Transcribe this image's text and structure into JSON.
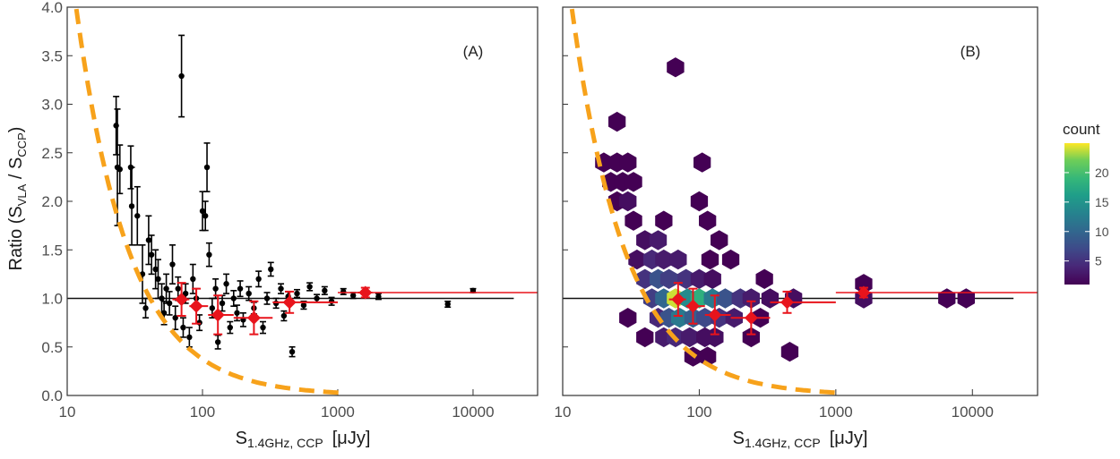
{
  "chart_data": [
    {
      "type": "scatter",
      "panel_label": "(A)",
      "x_scale": "log",
      "xlim": [
        10,
        30000
      ],
      "ylim": [
        0.0,
        4.0
      ],
      "x_ticks": [
        "10",
        "100",
        "1000",
        "10000"
      ],
      "y_ticks": [
        "0.0",
        "0.5",
        "1.0",
        "1.5",
        "2.0",
        "2.5",
        "3.0",
        "3.5",
        "4.0"
      ],
      "xlabel": {
        "main": "S",
        "sub": "1.4GHz, CCP",
        "unit": "[μJy]"
      },
      "ylabel": {
        "prefix": "Ratio (S",
        "sub1": "VLA",
        "mid": " / S",
        "sub2": "CCP",
        "suffix": ")"
      },
      "reference_line_y": 1.0,
      "fit_line": {
        "y": 1.06,
        "x_start": 1000,
        "x_end": 30000
      },
      "dashed_curve": {
        "color": "#f7a21b",
        "form": "y = (x/41)^-1.1"
      },
      "binned_points": [
        {
          "x": 70,
          "y": 0.99,
          "yerr": 0.17,
          "xlo": 60,
          "xhi": 80
        },
        {
          "x": 90,
          "y": 0.92,
          "yerr": 0.18,
          "xlo": 80,
          "xhi": 110
        },
        {
          "x": 130,
          "y": 0.83,
          "yerr": 0.2,
          "xlo": 110,
          "xhi": 170
        },
        {
          "x": 240,
          "y": 0.8,
          "yerr": 0.17,
          "xlo": 170,
          "xhi": 330
        },
        {
          "x": 440,
          "y": 0.96,
          "yerr": 0.11,
          "xlo": 330,
          "xhi": 1000
        },
        {
          "x": 1600,
          "y": 1.06,
          "yerr": 0.05,
          "xlo": 1400,
          "xhi": 1800
        }
      ],
      "points": [
        [
          23,
          2.78,
          0.3
        ],
        [
          23.5,
          2.35,
          0.6
        ],
        [
          24.5,
          2.33,
          0.25
        ],
        [
          29.5,
          2.35,
          0.22
        ],
        [
          30,
          1.95,
          0.4
        ],
        [
          33,
          1.85,
          0.3
        ],
        [
          36,
          1.25,
          0.3
        ],
        [
          38,
          0.9,
          0.1
        ],
        [
          40,
          1.6,
          0.25
        ],
        [
          42,
          1.45,
          0.2
        ],
        [
          45,
          1.3,
          0.2
        ],
        [
          47,
          1.2,
          0.2
        ],
        [
          50,
          1.0,
          0.15
        ],
        [
          52,
          0.85,
          0.12
        ],
        [
          54,
          1.1,
          0.15
        ],
        [
          57,
          0.95,
          0.12
        ],
        [
          60,
          1.35,
          0.2
        ],
        [
          63,
          0.8,
          0.12
        ],
        [
          66,
          1.1,
          0.12
        ],
        [
          70,
          3.29,
          0.42
        ],
        [
          72,
          0.7,
          0.1
        ],
        [
          75,
          1.05,
          0.1
        ],
        [
          80,
          0.6,
          0.1
        ],
        [
          85,
          1.2,
          0.15
        ],
        [
          90,
          1.0,
          0.1
        ],
        [
          95,
          0.75,
          0.08
        ],
        [
          100,
          1.9,
          0.2
        ],
        [
          105,
          1.85,
          0.15
        ],
        [
          108,
          2.35,
          0.25
        ],
        [
          112,
          1.45,
          0.12
        ],
        [
          118,
          0.9,
          0.1
        ],
        [
          125,
          1.1,
          0.1
        ],
        [
          130,
          0.55,
          0.07
        ],
        [
          140,
          0.95,
          0.08
        ],
        [
          150,
          1.15,
          0.1
        ],
        [
          160,
          0.7,
          0.06
        ],
        [
          170,
          1.0,
          0.08
        ],
        [
          180,
          0.85,
          0.08
        ],
        [
          190,
          1.1,
          0.08
        ],
        [
          200,
          0.78,
          0.07
        ],
        [
          220,
          1.05,
          0.07
        ],
        [
          240,
          0.9,
          0.06
        ],
        [
          260,
          1.2,
          0.08
        ],
        [
          280,
          0.7,
          0.06
        ],
        [
          300,
          1.0,
          0.06
        ],
        [
          320,
          1.3,
          0.07
        ],
        [
          350,
          0.95,
          0.05
        ],
        [
          380,
          1.1,
          0.05
        ],
        [
          400,
          0.82,
          0.05
        ],
        [
          430,
          1.02,
          0.05
        ],
        [
          460,
          0.45,
          0.05
        ],
        [
          500,
          1.05,
          0.04
        ],
        [
          560,
          0.93,
          0.04
        ],
        [
          620,
          1.12,
          0.04
        ],
        [
          700,
          1.0,
          0.04
        ],
        [
          800,
          1.08,
          0.04
        ],
        [
          900,
          0.97,
          0.04
        ],
        [
          1100,
          1.07,
          0.03
        ],
        [
          1300,
          1.03,
          0.03
        ],
        [
          2000,
          1.02,
          0.03
        ],
        [
          6500,
          0.94,
          0.03
        ],
        [
          10000,
          1.08,
          0.02
        ]
      ]
    },
    {
      "type": "heatmap",
      "panel_label": "(B)",
      "x_scale": "log",
      "xlim": [
        10,
        30000
      ],
      "ylim": [
        0.0,
        4.0
      ],
      "x_ticks": [
        "10",
        "100",
        "1000",
        "10000"
      ],
      "xlabel": {
        "main": "S",
        "sub": "1.4GHz, CCP",
        "unit": "[μJy]"
      },
      "reference_line_y": 1.0,
      "fit_line": {
        "y": 1.06,
        "x_start": 1000,
        "x_end": 30000
      },
      "colorbar": {
        "title": "count",
        "min": 1,
        "max": 25,
        "ticks": [
          "5",
          "10",
          "15",
          "20"
        ],
        "tick_values": [
          5,
          10,
          15,
          20
        ]
      },
      "hex_bins": [
        [
          67,
          3.38,
          1
        ],
        [
          25,
          2.82,
          1
        ],
        [
          105,
          2.4,
          1
        ],
        [
          20,
          2.4,
          1
        ],
        [
          25,
          2.4,
          1
        ],
        [
          30,
          2.4,
          1
        ],
        [
          22.5,
          2.2,
          1
        ],
        [
          27.5,
          2.2,
          1
        ],
        [
          33,
          2.2,
          1
        ],
        [
          25,
          2.0,
          1
        ],
        [
          30,
          2.0,
          2
        ],
        [
          100,
          2.0,
          1
        ],
        [
          33,
          1.8,
          1
        ],
        [
          55,
          1.8,
          1
        ],
        [
          115,
          1.8,
          1
        ],
        [
          40,
          1.6,
          2
        ],
        [
          50,
          1.6,
          3
        ],
        [
          140,
          1.6,
          1
        ],
        [
          35,
          1.4,
          2
        ],
        [
          45,
          1.4,
          4
        ],
        [
          55,
          1.4,
          3
        ],
        [
          70,
          1.4,
          3
        ],
        [
          120,
          1.4,
          1
        ],
        [
          170,
          1.4,
          1
        ],
        [
          40,
          1.2,
          5
        ],
        [
          50,
          1.2,
          8
        ],
        [
          60,
          1.2,
          6
        ],
        [
          80,
          1.2,
          5
        ],
        [
          100,
          1.2,
          3
        ],
        [
          125,
          1.2,
          2
        ],
        [
          300,
          1.2,
          1
        ],
        [
          45,
          1.0,
          6
        ],
        [
          55,
          1.0,
          10
        ],
        [
          67,
          1.0,
          24
        ],
        [
          82,
          1.0,
          14
        ],
        [
          100,
          1.0,
          18
        ],
        [
          125,
          1.0,
          12
        ],
        [
          155,
          1.0,
          8
        ],
        [
          200,
          1.0,
          5
        ],
        [
          240,
          1.0,
          3
        ],
        [
          330,
          1.0,
          2
        ],
        [
          490,
          1.0,
          2
        ],
        [
          1600,
          1.0,
          2
        ],
        [
          6500,
          1.0,
          1
        ],
        [
          9000,
          1.0,
          1
        ],
        [
          30,
          0.8,
          1
        ],
        [
          50,
          0.8,
          4
        ],
        [
          60,
          0.8,
          8
        ],
        [
          72,
          0.8,
          12
        ],
        [
          90,
          0.8,
          9
        ],
        [
          110,
          0.8,
          7
        ],
        [
          140,
          0.8,
          5
        ],
        [
          180,
          0.8,
          3
        ],
        [
          280,
          0.8,
          1
        ],
        [
          40,
          0.6,
          1
        ],
        [
          55,
          0.6,
          3
        ],
        [
          67,
          0.6,
          4
        ],
        [
          85,
          0.6,
          3
        ],
        [
          110,
          0.6,
          2
        ],
        [
          130,
          0.6,
          2
        ],
        [
          240,
          0.6,
          1
        ],
        [
          90,
          0.4,
          1
        ],
        [
          115,
          0.4,
          1
        ],
        [
          460,
          0.45,
          1
        ],
        [
          1600,
          1.15,
          1
        ]
      ]
    }
  ]
}
